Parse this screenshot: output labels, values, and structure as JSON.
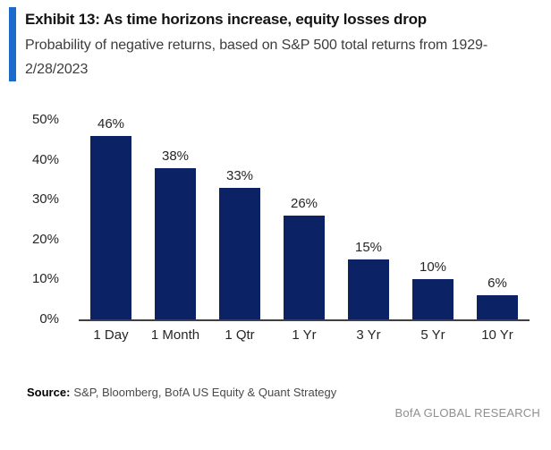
{
  "header": {
    "title": "Exhibit 13: As time horizons increase, equity losses drop",
    "subtitle": "Probability of negative returns, based on S&P 500 total returns from 1929-2/28/2023",
    "accent_color": "#1b6bcb"
  },
  "chart_data": {
    "type": "bar",
    "title": "Probability of negative returns, based on S&P 500 total returns from 1929-2/28/2023",
    "categories": [
      "1 Day",
      "1 Month",
      "1 Qtr",
      "1 Yr",
      "3 Yr",
      "5 Yr",
      "10 Yr"
    ],
    "values": [
      46,
      38,
      33,
      26,
      15,
      10,
      6
    ],
    "value_labels": [
      "46%",
      "38%",
      "33%",
      "26%",
      "15%",
      "10%",
      "6%"
    ],
    "xlabel": "",
    "ylabel": "",
    "ylim": [
      0,
      50
    ],
    "ytick_step": 10,
    "yticks": [
      "0%",
      "10%",
      "20%",
      "30%",
      "40%",
      "50%"
    ],
    "bar_color": "#0b2265",
    "axis_line_color": "#404040",
    "grid": false,
    "legend": false
  },
  "footer": {
    "source_label": "Source:",
    "source_text": "S&P, Bloomberg, BofA US Equity & Quant Strategy",
    "brand": "BofA GLOBAL RESEARCH"
  }
}
